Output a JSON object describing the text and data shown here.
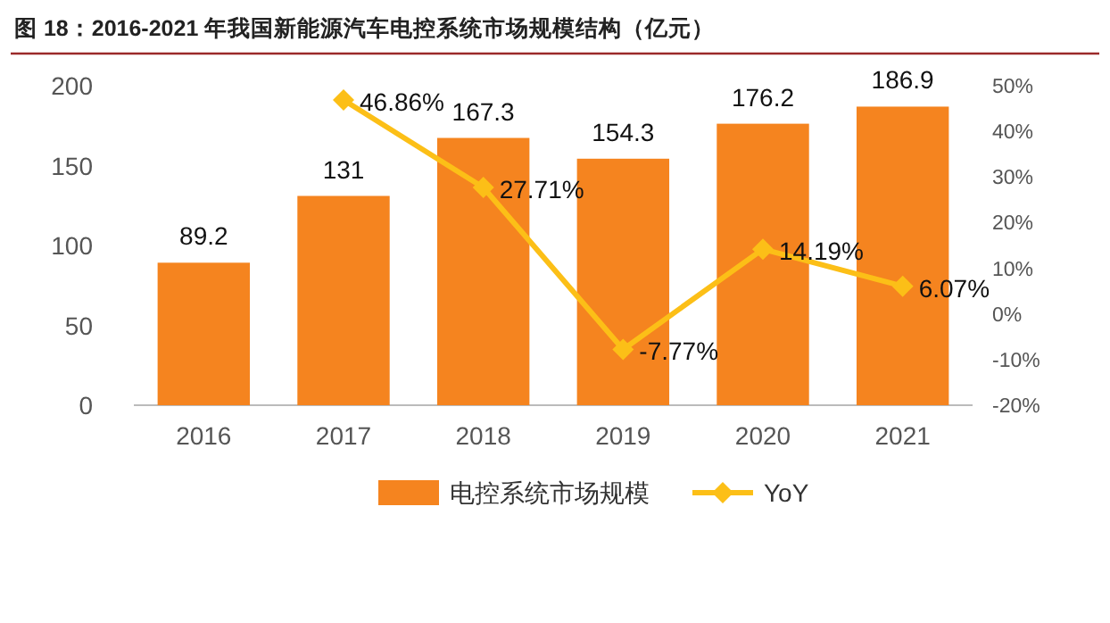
{
  "chart_data": {
    "type": "bar",
    "title": "图 18：2016-2021 年我国新能源汽车电控系统市场规模结构（亿元）",
    "categories": [
      "2016",
      "2017",
      "2018",
      "2019",
      "2020",
      "2021"
    ],
    "series": [
      {
        "name": "电控系统市场规模",
        "color": "#f5841f",
        "values": [
          89.2,
          131,
          167.3,
          154.3,
          176.2,
          186.9
        ],
        "value_labels": [
          "89.2",
          "131",
          "167.3",
          "154.3",
          "176.2",
          "186.9"
        ]
      },
      {
        "name": "YoY",
        "type": "line",
        "axis": "y2",
        "color": "#fcbf17",
        "marker": "diamond",
        "values": [
          null,
          46.86,
          27.71,
          -7.77,
          14.19,
          6.07
        ],
        "value_labels": [
          null,
          "46.86%",
          "27.71%",
          "-7.77%",
          "14.19%",
          "6.07%"
        ]
      }
    ],
    "ylim": [
      0,
      200
    ],
    "yticks": [
      0,
      50,
      100,
      150,
      200
    ],
    "y2lim": [
      -20,
      50
    ],
    "y2ticks": [
      {
        "value": -20,
        "label": "-20%"
      },
      {
        "value": -10,
        "label": "-10%"
      },
      {
        "value": 0,
        "label": "0%"
      },
      {
        "value": 10,
        "label": "10%"
      },
      {
        "value": 20,
        "label": "20%"
      },
      {
        "value": 30,
        "label": "30%"
      },
      {
        "value": 40,
        "label": "40%"
      },
      {
        "value": 50,
        "label": "50%"
      }
    ],
    "legend": "bottom"
  }
}
